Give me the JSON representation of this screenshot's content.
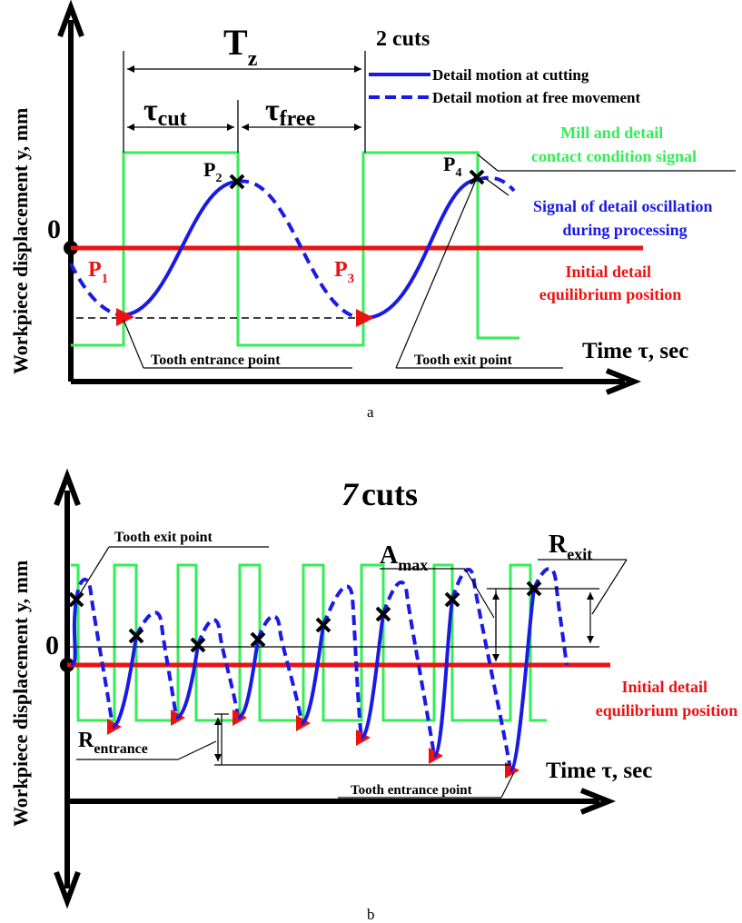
{
  "panel_a": {
    "y_axis_label": "Workpiece displacement y, mm",
    "x_axis_label": "Time τ, sec",
    "zero_label": "0",
    "title": "2 cuts",
    "period_label": {
      "main": "T",
      "sub": "z"
    },
    "tau_cut": {
      "main": "τ",
      "sub": "cut"
    },
    "tau_free": {
      "main": "τ",
      "sub": "free"
    },
    "legend_cutting": "Detail motion at cutting",
    "legend_free": "Detail motion at free movement",
    "contact_signal_label": [
      "Mill and detail",
      "contact condition signal"
    ],
    "oscillation_label": [
      "Signal of detail oscillation",
      "during processing"
    ],
    "equilibrium_label": [
      "Initial detail",
      "equilibrium position"
    ],
    "tooth_entrance_label": "Tooth entrance point",
    "tooth_exit_label": "Tooth exit point",
    "points": [
      {
        "main": "P",
        "sub": "1"
      },
      {
        "main": "P",
        "sub": "2"
      },
      {
        "main": "P",
        "sub": "3"
      },
      {
        "main": "P",
        "sub": "4"
      }
    ],
    "caption": "a"
  },
  "panel_b": {
    "y_axis_label": "Workpiece displacement y, mm",
    "x_axis_label": "Time τ, sec",
    "zero_label": "0",
    "title": {
      "number": "7",
      "word": "cuts"
    },
    "tooth_exit_label": "Tooth exit point",
    "tooth_entrance_label": "Tooth entrance point",
    "a_max": {
      "main": "A",
      "sub": "max"
    },
    "r_exit": {
      "main": "R",
      "sub": "exit"
    },
    "r_entrance": {
      "main": "R",
      "sub": "entrance"
    },
    "equilibrium_label": [
      "Initial detail",
      "equilibrium position"
    ],
    "caption": "b"
  },
  "colors": {
    "cutting_motion": "#1a1ae6",
    "contact_signal": "#33ee55",
    "equilibrium": "#ee1111",
    "text": "#000000",
    "marker": "#ee1111"
  }
}
